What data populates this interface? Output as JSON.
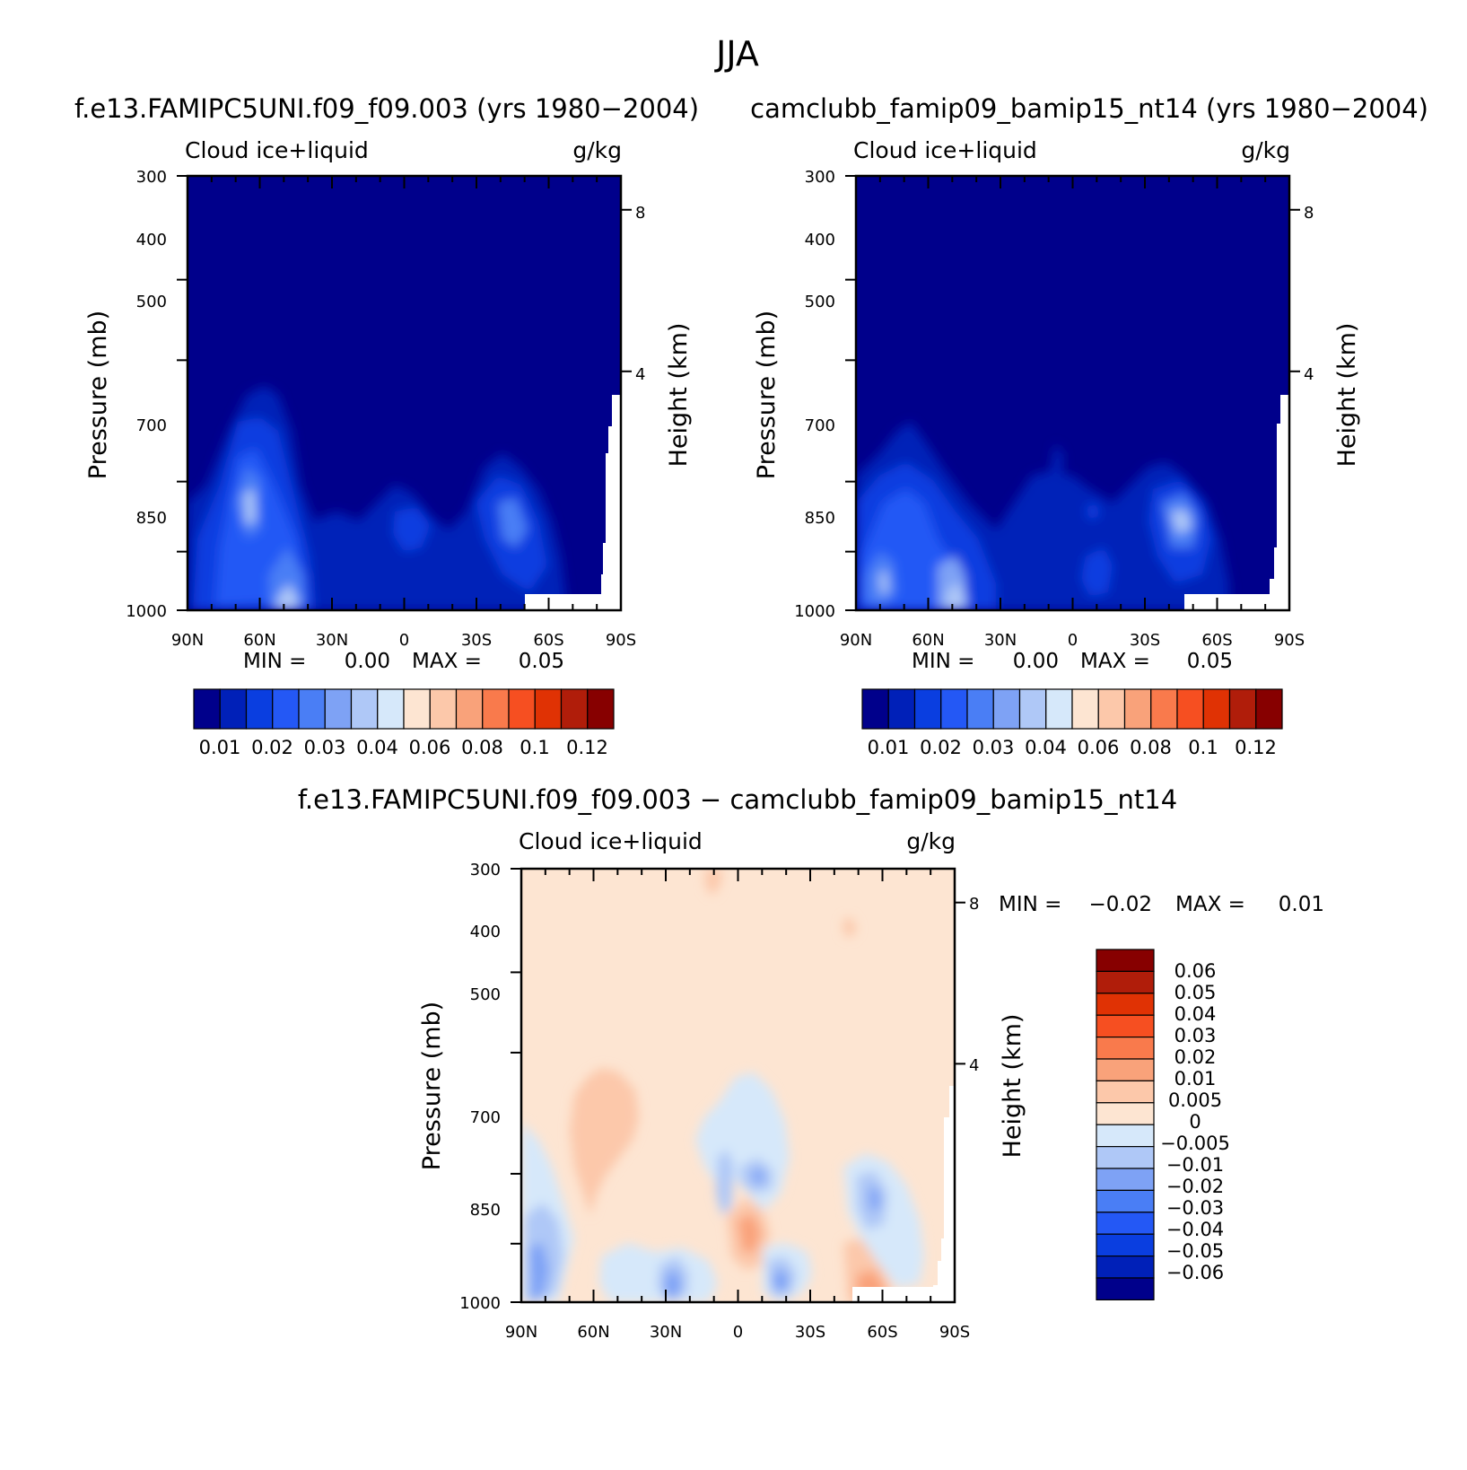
{
  "page_title": "JJA",
  "chart_data": [
    {
      "type": "heatmap",
      "panel": "top-left",
      "title": "f.e13.FAMIPC5UNI.f09_f09.003 (yrs 1980−2004)",
      "field_label": "Cloud ice+liquid",
      "units": "g/kg",
      "x_tick_labels": [
        "90N",
        "60N",
        "30N",
        "0",
        "30S",
        "60S",
        "90S"
      ],
      "xlim": [
        90,
        -90
      ],
      "y_tick_labels": [
        "300",
        "400",
        "500",
        "700",
        "850",
        "1000"
      ],
      "y_ticks": [
        300,
        400,
        500,
        700,
        850,
        1000
      ],
      "ylim": [
        1000,
        300
      ],
      "ylabel": "Pressure (mb)",
      "y2label": "Height (km)",
      "y2_tick_labels": [
        "8",
        "4"
      ],
      "min_label": "MIN =",
      "min_value": "0.00",
      "max_label": "MAX =",
      "max_value": "0.05",
      "colorbar_labels": [
        "0.01",
        "0.02",
        "0.03",
        "0.04",
        "0.06",
        "0.08",
        "0.1",
        "0.12"
      ]
    },
    {
      "type": "heatmap",
      "panel": "top-right",
      "title": "camclubb_famip09_bamip15_nt14 (yrs 1980−2004)",
      "field_label": "Cloud ice+liquid",
      "units": "g/kg",
      "x_tick_labels": [
        "90N",
        "60N",
        "30N",
        "0",
        "30S",
        "60S",
        "90S"
      ],
      "xlim": [
        90,
        -90
      ],
      "y_tick_labels": [
        "300",
        "400",
        "500",
        "700",
        "850",
        "1000"
      ],
      "y_ticks": [
        300,
        400,
        500,
        700,
        850,
        1000
      ],
      "ylim": [
        1000,
        300
      ],
      "ylabel": "Pressure (mb)",
      "y2label": "Height (km)",
      "y2_tick_labels": [
        "8",
        "4"
      ],
      "min_label": "MIN =",
      "min_value": "0.00",
      "max_label": "MAX =",
      "max_value": "0.05",
      "colorbar_labels": [
        "0.01",
        "0.02",
        "0.03",
        "0.04",
        "0.06",
        "0.08",
        "0.1",
        "0.12"
      ]
    },
    {
      "type": "heatmap",
      "panel": "bottom",
      "title": "f.e13.FAMIPC5UNI.f09_f09.003 − camclubb_famip09_bamip15_nt14",
      "field_label": "Cloud ice+liquid",
      "units": "g/kg",
      "x_tick_labels": [
        "90N",
        "60N",
        "30N",
        "0",
        "30S",
        "60S",
        "90S"
      ],
      "xlim": [
        90,
        -90
      ],
      "y_tick_labels": [
        "300",
        "400",
        "500",
        "700",
        "850",
        "1000"
      ],
      "y_ticks": [
        300,
        400,
        500,
        700,
        850,
        1000
      ],
      "ylim": [
        1000,
        300
      ],
      "ylabel": "Pressure (mb)",
      "y2label": "Height (km)",
      "y2_tick_labels": [
        "8",
        "4"
      ],
      "min_label": "MIN =",
      "min_value": "−0.02",
      "max_label": "MAX =",
      "max_value": "0.01",
      "colorbar_labels": [
        "0.06",
        "0.05",
        "0.04",
        "0.03",
        "0.02",
        "0.01",
        "0.005",
        "0",
        "−0.005",
        "−0.01",
        "−0.02",
        "−0.03",
        "−0.04",
        "−0.05",
        "−0.06"
      ]
    }
  ],
  "colors": {
    "seq": [
      "#00008b",
      "#0020b8",
      "#0a3ee0",
      "#2458f5",
      "#4a7ef5",
      "#7ea2f5",
      "#afc8f7",
      "#d6e8fa",
      "#fde5d2",
      "#fcc8aa",
      "#f9a27a",
      "#f97a4c",
      "#f64f21",
      "#e03204",
      "#b01d0a",
      "#870000"
    ],
    "div": [
      "#870000",
      "#b01d0a",
      "#e03204",
      "#f64f21",
      "#f97a4c",
      "#f9a27a",
      "#fcc8aa",
      "#fde5d2",
      "#d6e8fa",
      "#afc8f7",
      "#7ea2f5",
      "#4a7ef5",
      "#2458f5",
      "#0a3ee0",
      "#0020b8",
      "#00008b"
    ]
  }
}
